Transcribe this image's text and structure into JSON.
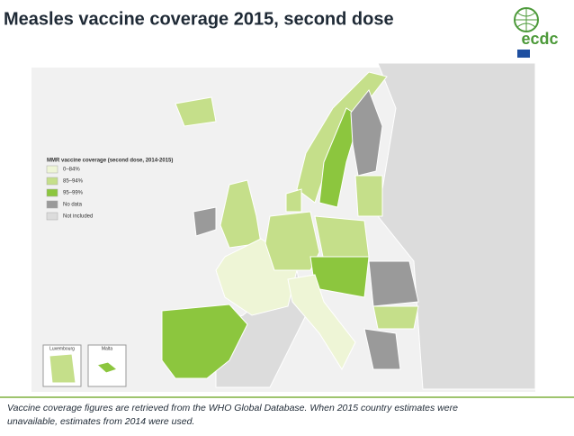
{
  "header": {
    "title": "Measles vaccine coverage 2015, second dose"
  },
  "logo": {
    "text": "ecdc"
  },
  "legend": {
    "title": "MMR vaccine coverage (second dose, 2014-2015)",
    "items": [
      {
        "label": "0–84%",
        "color": "#eef5d6"
      },
      {
        "label": "85–94%",
        "color": "#c5df8a"
      },
      {
        "label": "95–99%",
        "color": "#8cc63e"
      },
      {
        "label": "No data",
        "color": "#9a9a9a"
      },
      {
        "label": "Not included",
        "color": "#dcdcdc"
      }
    ]
  },
  "insets": [
    "Luxembourg",
    "Malta"
  ],
  "footnote": [
    "Vaccine coverage figures are retrieved from the WHO Global Database. When 2015 country estimates were",
    "unavailable, estimates from 2014 were used."
  ]
}
